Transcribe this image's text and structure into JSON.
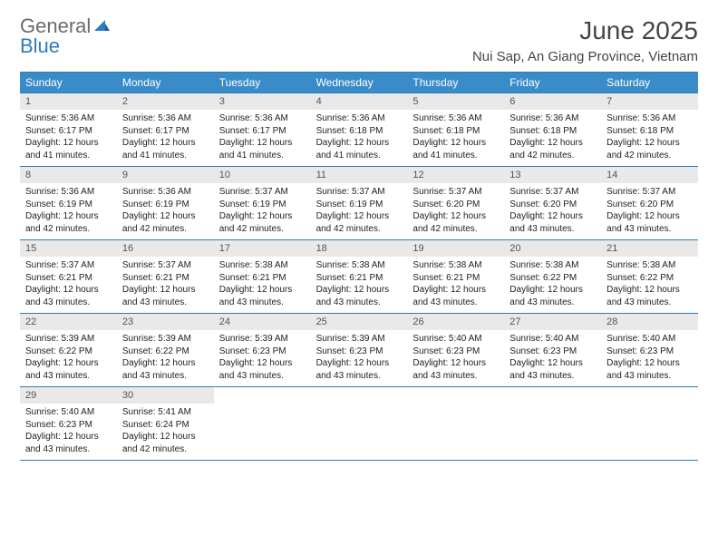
{
  "logo": {
    "general": "General",
    "blue": "Blue"
  },
  "title": "June 2025",
  "location": "Nui Sap, An Giang Province, Vietnam",
  "colors": {
    "header_bg": "#3a8cc9",
    "header_border": "#2d7bc0",
    "daynum_bg": "#e9e9e9",
    "text": "#222222",
    "title_color": "#444444",
    "logo_gray": "#6b6b6b",
    "logo_blue": "#2d7bc0"
  },
  "daysOfWeek": [
    "Sunday",
    "Monday",
    "Tuesday",
    "Wednesday",
    "Thursday",
    "Friday",
    "Saturday"
  ],
  "weeks": [
    [
      {
        "n": "1",
        "sr": "Sunrise: 5:36 AM",
        "ss": "Sunset: 6:17 PM",
        "dl": "Daylight: 12 hours and 41 minutes."
      },
      {
        "n": "2",
        "sr": "Sunrise: 5:36 AM",
        "ss": "Sunset: 6:17 PM",
        "dl": "Daylight: 12 hours and 41 minutes."
      },
      {
        "n": "3",
        "sr": "Sunrise: 5:36 AM",
        "ss": "Sunset: 6:17 PM",
        "dl": "Daylight: 12 hours and 41 minutes."
      },
      {
        "n": "4",
        "sr": "Sunrise: 5:36 AM",
        "ss": "Sunset: 6:18 PM",
        "dl": "Daylight: 12 hours and 41 minutes."
      },
      {
        "n": "5",
        "sr": "Sunrise: 5:36 AM",
        "ss": "Sunset: 6:18 PM",
        "dl": "Daylight: 12 hours and 41 minutes."
      },
      {
        "n": "6",
        "sr": "Sunrise: 5:36 AM",
        "ss": "Sunset: 6:18 PM",
        "dl": "Daylight: 12 hours and 42 minutes."
      },
      {
        "n": "7",
        "sr": "Sunrise: 5:36 AM",
        "ss": "Sunset: 6:18 PM",
        "dl": "Daylight: 12 hours and 42 minutes."
      }
    ],
    [
      {
        "n": "8",
        "sr": "Sunrise: 5:36 AM",
        "ss": "Sunset: 6:19 PM",
        "dl": "Daylight: 12 hours and 42 minutes."
      },
      {
        "n": "9",
        "sr": "Sunrise: 5:36 AM",
        "ss": "Sunset: 6:19 PM",
        "dl": "Daylight: 12 hours and 42 minutes."
      },
      {
        "n": "10",
        "sr": "Sunrise: 5:37 AM",
        "ss": "Sunset: 6:19 PM",
        "dl": "Daylight: 12 hours and 42 minutes."
      },
      {
        "n": "11",
        "sr": "Sunrise: 5:37 AM",
        "ss": "Sunset: 6:19 PM",
        "dl": "Daylight: 12 hours and 42 minutes."
      },
      {
        "n": "12",
        "sr": "Sunrise: 5:37 AM",
        "ss": "Sunset: 6:20 PM",
        "dl": "Daylight: 12 hours and 42 minutes."
      },
      {
        "n": "13",
        "sr": "Sunrise: 5:37 AM",
        "ss": "Sunset: 6:20 PM",
        "dl": "Daylight: 12 hours and 43 minutes."
      },
      {
        "n": "14",
        "sr": "Sunrise: 5:37 AM",
        "ss": "Sunset: 6:20 PM",
        "dl": "Daylight: 12 hours and 43 minutes."
      }
    ],
    [
      {
        "n": "15",
        "sr": "Sunrise: 5:37 AM",
        "ss": "Sunset: 6:21 PM",
        "dl": "Daylight: 12 hours and 43 minutes."
      },
      {
        "n": "16",
        "sr": "Sunrise: 5:37 AM",
        "ss": "Sunset: 6:21 PM",
        "dl": "Daylight: 12 hours and 43 minutes."
      },
      {
        "n": "17",
        "sr": "Sunrise: 5:38 AM",
        "ss": "Sunset: 6:21 PM",
        "dl": "Daylight: 12 hours and 43 minutes."
      },
      {
        "n": "18",
        "sr": "Sunrise: 5:38 AM",
        "ss": "Sunset: 6:21 PM",
        "dl": "Daylight: 12 hours and 43 minutes."
      },
      {
        "n": "19",
        "sr": "Sunrise: 5:38 AM",
        "ss": "Sunset: 6:21 PM",
        "dl": "Daylight: 12 hours and 43 minutes."
      },
      {
        "n": "20",
        "sr": "Sunrise: 5:38 AM",
        "ss": "Sunset: 6:22 PM",
        "dl": "Daylight: 12 hours and 43 minutes."
      },
      {
        "n": "21",
        "sr": "Sunrise: 5:38 AM",
        "ss": "Sunset: 6:22 PM",
        "dl": "Daylight: 12 hours and 43 minutes."
      }
    ],
    [
      {
        "n": "22",
        "sr": "Sunrise: 5:39 AM",
        "ss": "Sunset: 6:22 PM",
        "dl": "Daylight: 12 hours and 43 minutes."
      },
      {
        "n": "23",
        "sr": "Sunrise: 5:39 AM",
        "ss": "Sunset: 6:22 PM",
        "dl": "Daylight: 12 hours and 43 minutes."
      },
      {
        "n": "24",
        "sr": "Sunrise: 5:39 AM",
        "ss": "Sunset: 6:23 PM",
        "dl": "Daylight: 12 hours and 43 minutes."
      },
      {
        "n": "25",
        "sr": "Sunrise: 5:39 AM",
        "ss": "Sunset: 6:23 PM",
        "dl": "Daylight: 12 hours and 43 minutes."
      },
      {
        "n": "26",
        "sr": "Sunrise: 5:40 AM",
        "ss": "Sunset: 6:23 PM",
        "dl": "Daylight: 12 hours and 43 minutes."
      },
      {
        "n": "27",
        "sr": "Sunrise: 5:40 AM",
        "ss": "Sunset: 6:23 PM",
        "dl": "Daylight: 12 hours and 43 minutes."
      },
      {
        "n": "28",
        "sr": "Sunrise: 5:40 AM",
        "ss": "Sunset: 6:23 PM",
        "dl": "Daylight: 12 hours and 43 minutes."
      }
    ],
    [
      {
        "n": "29",
        "sr": "Sunrise: 5:40 AM",
        "ss": "Sunset: 6:23 PM",
        "dl": "Daylight: 12 hours and 43 minutes."
      },
      {
        "n": "30",
        "sr": "Sunrise: 5:41 AM",
        "ss": "Sunset: 6:24 PM",
        "dl": "Daylight: 12 hours and 42 minutes."
      },
      null,
      null,
      null,
      null,
      null
    ]
  ]
}
